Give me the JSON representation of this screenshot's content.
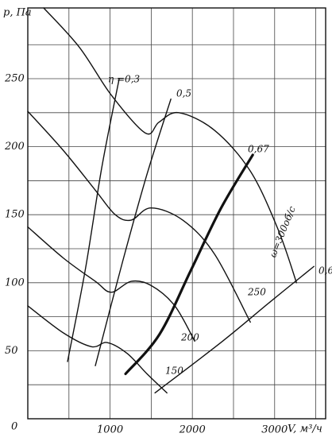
{
  "chart_data": {
    "type": "line",
    "y_label": "p, Па",
    "x_label": "V, м³/ч",
    "origin_label": "0",
    "xlim": [
      0,
      3620
    ],
    "ylim": [
      0,
      302
    ],
    "xticks": [
      1000,
      2000,
      3000
    ],
    "yticks": [
      50,
      100,
      150,
      200,
      250
    ],
    "x_minor_grid": [
      500,
      1500,
      2500,
      3500
    ],
    "y_minor_grid": [
      25,
      75,
      125,
      175,
      225,
      275
    ],
    "grid": true,
    "series": [
      {
        "name": "ω=300об/с",
        "color": "#111111",
        "linewidth": 1.4,
        "x": [
          193,
          628,
          1014,
          1430,
          1594,
          1836,
          2270,
          2705,
          3043,
          3266
        ],
        "values": [
          302,
          273,
          238,
          210,
          218,
          225,
          212,
          182,
          139,
          100
        ]
      },
      {
        "name": "250",
        "color": "#111111",
        "linewidth": 1.4,
        "x": [
          0,
          435,
          821,
          1063,
          1256,
          1498,
          1884,
          2270,
          2705
        ],
        "values": [
          226,
          197,
          168,
          150,
          146,
          155,
          146,
          121,
          71
        ]
      },
      {
        "name": "200",
        "color": "#111111",
        "linewidth": 1.4,
        "x": [
          0,
          435,
          821,
          1014,
          1256,
          1498,
          1787,
          2029
        ],
        "values": [
          141,
          118,
          101,
          93,
          101,
          98,
          83,
          57
        ]
      },
      {
        "name": "150",
        "color": "#111111",
        "linewidth": 1.4,
        "x": [
          0,
          435,
          773,
          966,
          1208,
          1449,
          1691
        ],
        "values": [
          83,
          63,
          53,
          56,
          48,
          33,
          19
        ]
      },
      {
        "name": "η =0,3",
        "color": "#111111",
        "linewidth": 1.4,
        "x": [
          483,
          700,
          900,
          1111
        ],
        "values": [
          42,
          110,
          185,
          250
        ]
      },
      {
        "name": "0,5",
        "color": "#111111",
        "linewidth": 1.4,
        "x": [
          821,
          1150,
          1450,
          1739
        ],
        "values": [
          39,
          115,
          180,
          235
        ]
      },
      {
        "name": "0,67",
        "color": "#111111",
        "linewidth": 3.2,
        "x": [
          1188,
          1600,
          1981,
          2350,
          2734
        ],
        "values": [
          33,
          62,
          109,
          155,
          194
        ]
      },
      {
        "name": "0,6",
        "color": "#111111",
        "linewidth": 1.4,
        "x": [
          1546,
          2367,
          2947,
          3478
        ],
        "values": [
          19,
          57,
          86,
          112
        ]
      }
    ]
  }
}
